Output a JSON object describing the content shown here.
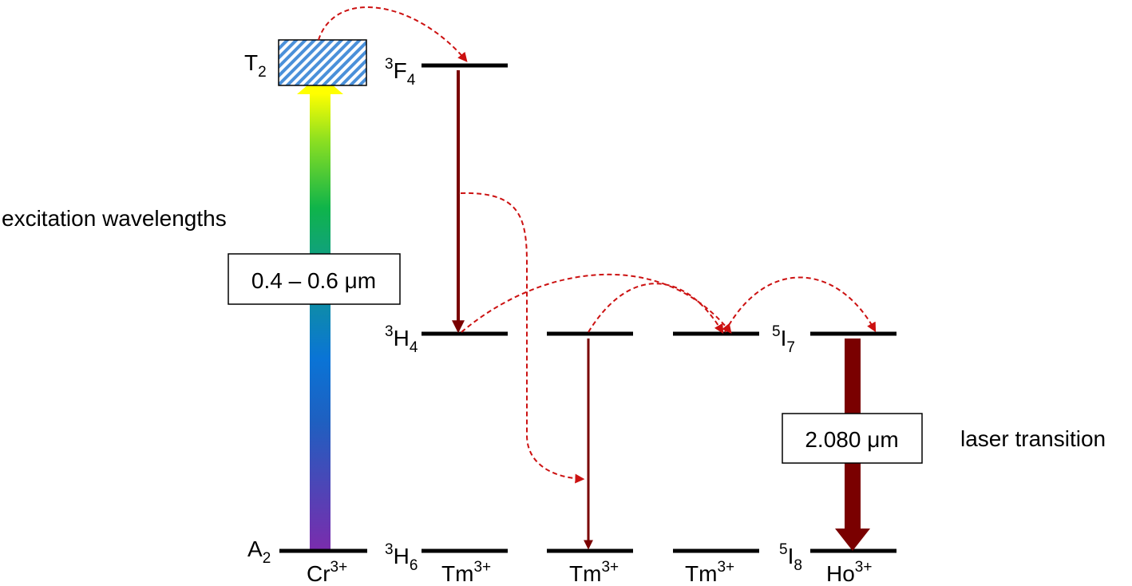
{
  "diagram": {
    "side_labels": {
      "excitation": "excitation wavelengths",
      "laser": "laser transition"
    },
    "boxes": {
      "excitation_range": "0.4 – 0.6 μm",
      "laser_wavelength": "2.080 μm"
    },
    "ions": {
      "cr": {
        "base": "Cr",
        "sup": "3+"
      },
      "tm1": {
        "base": "Tm",
        "sup": "3+"
      },
      "tm2": {
        "base": "Tm",
        "sup": "3+"
      },
      "tm3": {
        "base": "Tm",
        "sup": "3+"
      },
      "ho": {
        "base": "Ho",
        "sup": "3+"
      }
    },
    "levels": {
      "t2": {
        "base": "T",
        "sub": "2"
      },
      "a2": {
        "base": "A",
        "sub": "2"
      },
      "f4": {
        "pre": "3",
        "base": "F",
        "sub": "4"
      },
      "h4": {
        "pre": "3",
        "base": "H",
        "sub": "4"
      },
      "h6": {
        "pre": "3",
        "base": "H",
        "sub": "6"
      },
      "i7": {
        "pre": "5",
        "base": "I",
        "sub": "7"
      },
      "i8": {
        "pre": "5",
        "base": "I",
        "sub": "8"
      }
    },
    "colors": {
      "level_line": "#000000",
      "decay_arrow": "#7a0000",
      "transfer_arrow": "#cc1111",
      "box_hatch": "#4a90d9"
    },
    "excitation_gradient": [
      "#7b2cad",
      "#1f5fc0",
      "#0a74d6",
      "#119c8a",
      "#0fb44a",
      "#8fe020",
      "#ffff00"
    ]
  }
}
